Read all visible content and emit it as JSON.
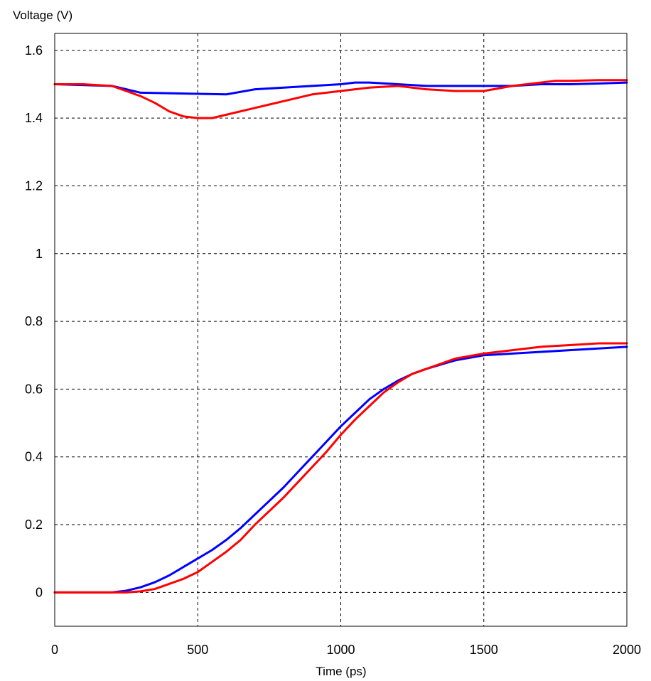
{
  "chart_data": {
    "type": "line",
    "title": "",
    "xlabel": "Time (ps)",
    "ylabel": "Voltage (V)",
    "xlim": [
      0,
      2000
    ],
    "ylim": [
      -0.1,
      1.65
    ],
    "x_ticks": [
      0,
      500,
      1000,
      1500,
      2000
    ],
    "x_tick_labels": [
      "0",
      "500",
      "1000",
      "1500",
      "2000"
    ],
    "y_ticks": [
      0,
      0.2,
      0.4,
      0.6,
      0.8,
      1,
      1.2,
      1.4,
      1.6
    ],
    "y_tick_labels": [
      "0",
      "0.2",
      "0.4",
      "0.6",
      "0.8",
      "1",
      "1.2",
      "1.4",
      "1.6"
    ],
    "grid": true,
    "grid_style": "dashed",
    "legend": "none",
    "series": [
      {
        "color": "#0000ff",
        "x": [
          0,
          200,
          250,
          300,
          600,
          700,
          800,
          900,
          1000,
          1050,
          1100,
          1200,
          1300,
          1400,
          1500,
          1600,
          1700,
          1800,
          1900,
          2000
        ],
        "y": [
          1.5,
          1.495,
          1.485,
          1.475,
          1.47,
          1.485,
          1.49,
          1.495,
          1.5,
          1.505,
          1.505,
          1.5,
          1.495,
          1.495,
          1.495,
          1.495,
          1.5,
          1.5,
          1.502,
          1.505
        ]
      },
      {
        "color": "#ff0000",
        "x": [
          0,
          100,
          200,
          250,
          300,
          350,
          400,
          450,
          500,
          550,
          600,
          700,
          800,
          900,
          1000,
          1100,
          1200,
          1300,
          1400,
          1500,
          1600,
          1700,
          1750,
          1800,
          1900,
          2000
        ],
        "y": [
          1.5,
          1.5,
          1.495,
          1.48,
          1.465,
          1.445,
          1.42,
          1.405,
          1.4,
          1.4,
          1.41,
          1.43,
          1.45,
          1.47,
          1.48,
          1.49,
          1.495,
          1.485,
          1.48,
          1.48,
          1.495,
          1.505,
          1.51,
          1.51,
          1.512,
          1.512
        ]
      },
      {
        "color": "#0000ff",
        "x": [
          0,
          200,
          250,
          300,
          350,
          400,
          450,
          500,
          550,
          600,
          650,
          700,
          750,
          800,
          850,
          900,
          950,
          1000,
          1050,
          1100,
          1150,
          1200,
          1250,
          1300,
          1400,
          1500,
          1600,
          1700,
          1800,
          1900,
          2000
        ],
        "y": [
          0,
          0,
          0.005,
          0.015,
          0.03,
          0.05,
          0.075,
          0.1,
          0.125,
          0.155,
          0.19,
          0.23,
          0.27,
          0.31,
          0.355,
          0.4,
          0.445,
          0.49,
          0.53,
          0.57,
          0.6,
          0.625,
          0.645,
          0.66,
          0.685,
          0.7,
          0.705,
          0.71,
          0.715,
          0.72,
          0.725
        ]
      },
      {
        "color": "#ff0000",
        "x": [
          0,
          250,
          300,
          350,
          400,
          450,
          500,
          550,
          600,
          650,
          700,
          750,
          800,
          850,
          900,
          950,
          1000,
          1050,
          1100,
          1150,
          1200,
          1250,
          1300,
          1400,
          1500,
          1600,
          1700,
          1800,
          1900,
          2000
        ],
        "y": [
          0,
          0,
          0.003,
          0.01,
          0.025,
          0.04,
          0.06,
          0.09,
          0.12,
          0.155,
          0.2,
          0.24,
          0.28,
          0.325,
          0.37,
          0.415,
          0.465,
          0.51,
          0.55,
          0.59,
          0.62,
          0.645,
          0.66,
          0.69,
          0.705,
          0.715,
          0.725,
          0.73,
          0.735,
          0.735
        ]
      }
    ]
  }
}
